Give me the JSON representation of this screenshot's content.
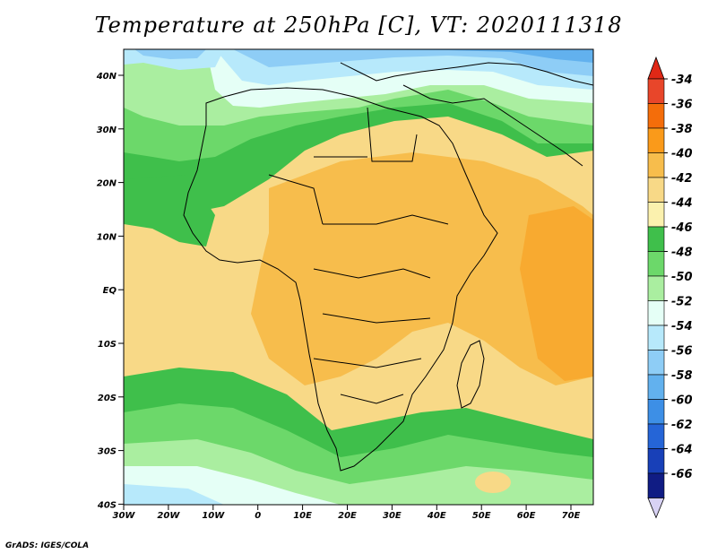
{
  "title": "Temperature at 250hPa [C], VT: 2020111318",
  "credit": "GrADS: IGES/COLA",
  "map": {
    "lon_labels": [
      "30W",
      "20W",
      "10W",
      "0",
      "10E",
      "20E",
      "30E",
      "40E",
      "50E",
      "60E",
      "70E"
    ],
    "lat_labels": [
      "40N",
      "30N",
      "20N",
      "10N",
      "EQ",
      "10S",
      "20S",
      "30S",
      "40S"
    ]
  },
  "colorbar": {
    "levels": [
      "-34",
      "-36",
      "-38",
      "-40",
      "-42",
      "-44",
      "-46",
      "-48",
      "-50",
      "-52",
      "-54",
      "-56",
      "-58",
      "-60",
      "-62",
      "-64",
      "-66"
    ],
    "colors": [
      "#e8462a",
      "#f46d0a",
      "#fa9a1a",
      "#f7bd4c",
      "#f8d987",
      "#fbf1ae",
      "#3fbf4b",
      "#6cd86a",
      "#aaeea0",
      "#e5fff6",
      "#b7e9fb",
      "#8ecdf6",
      "#62b1ee",
      "#3d8fe6",
      "#2565d7",
      "#1840b8",
      "#101c84"
    ],
    "top_arrow_color": "#e02816",
    "bottom_arrow_color": "#d8d2f4"
  }
}
